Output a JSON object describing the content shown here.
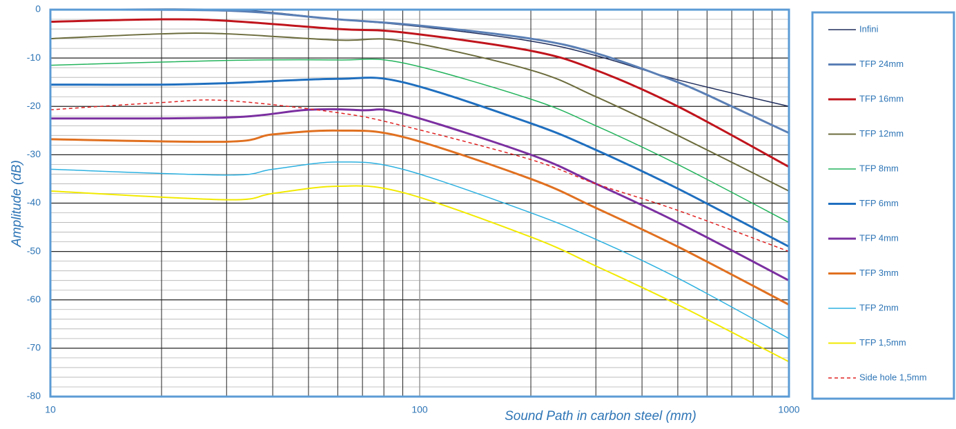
{
  "chart_data": {
    "type": "line",
    "xlabel": "Sound Path in carbon steel (mm)",
    "ylabel": "Amplitude (dB)",
    "xscale": "log",
    "xlim": [
      10,
      1000
    ],
    "xticks": [
      10,
      100,
      1000
    ],
    "ylim": [
      -80,
      0
    ],
    "yticks": [
      0,
      -10,
      -20,
      -30,
      -40,
      -50,
      -60,
      -70,
      -80
    ],
    "x_minor_grid": [
      20,
      30,
      40,
      50,
      60,
      70,
      80,
      90,
      200,
      300,
      400,
      500,
      600,
      700,
      800,
      900
    ],
    "y_minor_grid": [
      -2,
      -4,
      -6,
      -8,
      -12,
      -14,
      -16,
      -18,
      -22,
      -24,
      -26,
      -28,
      -32,
      -34,
      -36,
      -38,
      -42,
      -44,
      -46,
      -48,
      -52,
      -54,
      -56,
      -58,
      -62,
      -64,
      -66,
      -68,
      -72,
      -74,
      -76,
      -78
    ],
    "grid": true,
    "legend": "right",
    "series": [
      {
        "name": "Infini",
        "color": "#1f2d5c",
        "line_width": 1.5,
        "x": [
          10,
          30,
          60,
          100,
          200,
          300,
          500,
          1000
        ],
        "values": [
          0,
          0,
          -2,
          -3.5,
          -6.5,
          -9.5,
          -14.5,
          -20
        ]
      },
      {
        "name": "TFP 24mm",
        "color": "#5a7fb5",
        "line_width": 3,
        "x": [
          10,
          30,
          60,
          100,
          200,
          300,
          500,
          700,
          1000
        ],
        "values": [
          0,
          -0.2,
          -2,
          -3.3,
          -6,
          -9,
          -15,
          -20,
          -25.5
        ]
      },
      {
        "name": "TFP 16mm",
        "color": "#c0141c",
        "line_width": 3,
        "x": [
          10,
          20,
          30,
          60,
          90,
          200,
          300,
          500,
          1000
        ],
        "values": [
          -2.5,
          -2,
          -2.3,
          -4,
          -4.7,
          -8.5,
          -12.5,
          -20,
          -32.5
        ]
      },
      {
        "name": "TFP 12mm",
        "color": "#6b6b3c",
        "line_width": 2,
        "x": [
          10,
          20,
          30,
          60,
          90,
          200,
          300,
          500,
          1000
        ],
        "values": [
          -6,
          -5,
          -5,
          -6.3,
          -6.5,
          -12.5,
          -18,
          -26,
          -37.5
        ]
      },
      {
        "name": "TFP 8mm",
        "color": "#22b35b",
        "line_width": 1.5,
        "x": [
          10,
          30,
          60,
          90,
          200,
          300,
          500,
          1000
        ],
        "values": [
          -11.5,
          -10.5,
          -10.4,
          -11,
          -18.5,
          -24,
          -32,
          -44
        ]
      },
      {
        "name": "TFP 6mm",
        "color": "#1f6fbf",
        "line_width": 3,
        "x": [
          10,
          20,
          30,
          60,
          90,
          200,
          300,
          500,
          1000
        ],
        "values": [
          -15.5,
          -15.5,
          -15.2,
          -14.3,
          -15,
          -23.5,
          -29,
          -37,
          -49
        ]
      },
      {
        "name": "TFP 4mm",
        "color": "#7b2fa0",
        "line_width": 3,
        "x": [
          10,
          30,
          50,
          70,
          90,
          200,
          300,
          500,
          1000
        ],
        "values": [
          -22.5,
          -22.3,
          -20.7,
          -20.8,
          -21.5,
          -30,
          -36,
          -44,
          -56
        ]
      },
      {
        "name": "TFP 3mm",
        "color": "#e07020",
        "line_width": 3,
        "x": [
          10,
          30,
          40,
          60,
          90,
          200,
          300,
          500,
          1000
        ],
        "values": [
          -26.8,
          -27.3,
          -25.8,
          -25,
          -26.3,
          -35,
          -41,
          -49,
          -61
        ]
      },
      {
        "name": "TFP 2mm",
        "color": "#2bb0e0",
        "line_width": 1.5,
        "x": [
          10,
          30,
          40,
          60,
          90,
          200,
          300,
          500,
          1000
        ],
        "values": [
          -33,
          -34.2,
          -33,
          -31.5,
          -33,
          -42,
          -47.5,
          -55.5,
          -68
        ]
      },
      {
        "name": "TFP 1,5mm",
        "color": "#f2ea00",
        "line_width": 2,
        "x": [
          10,
          30,
          40,
          60,
          90,
          200,
          300,
          500,
          1000
        ],
        "values": [
          -37.5,
          -39.3,
          -38,
          -36.5,
          -37.8,
          -47,
          -53,
          -61,
          -72.8
        ]
      },
      {
        "name": "Side hole 1,5mm",
        "color": "#e02020",
        "line_width": 1.5,
        "dashed": true,
        "x": [
          10,
          20,
          30,
          60,
          90,
          200,
          300,
          500,
          1000
        ],
        "values": [
          -20.7,
          -19.2,
          -18.8,
          -21.3,
          -24,
          -31,
          -36,
          -41.5,
          -50
        ]
      }
    ]
  }
}
